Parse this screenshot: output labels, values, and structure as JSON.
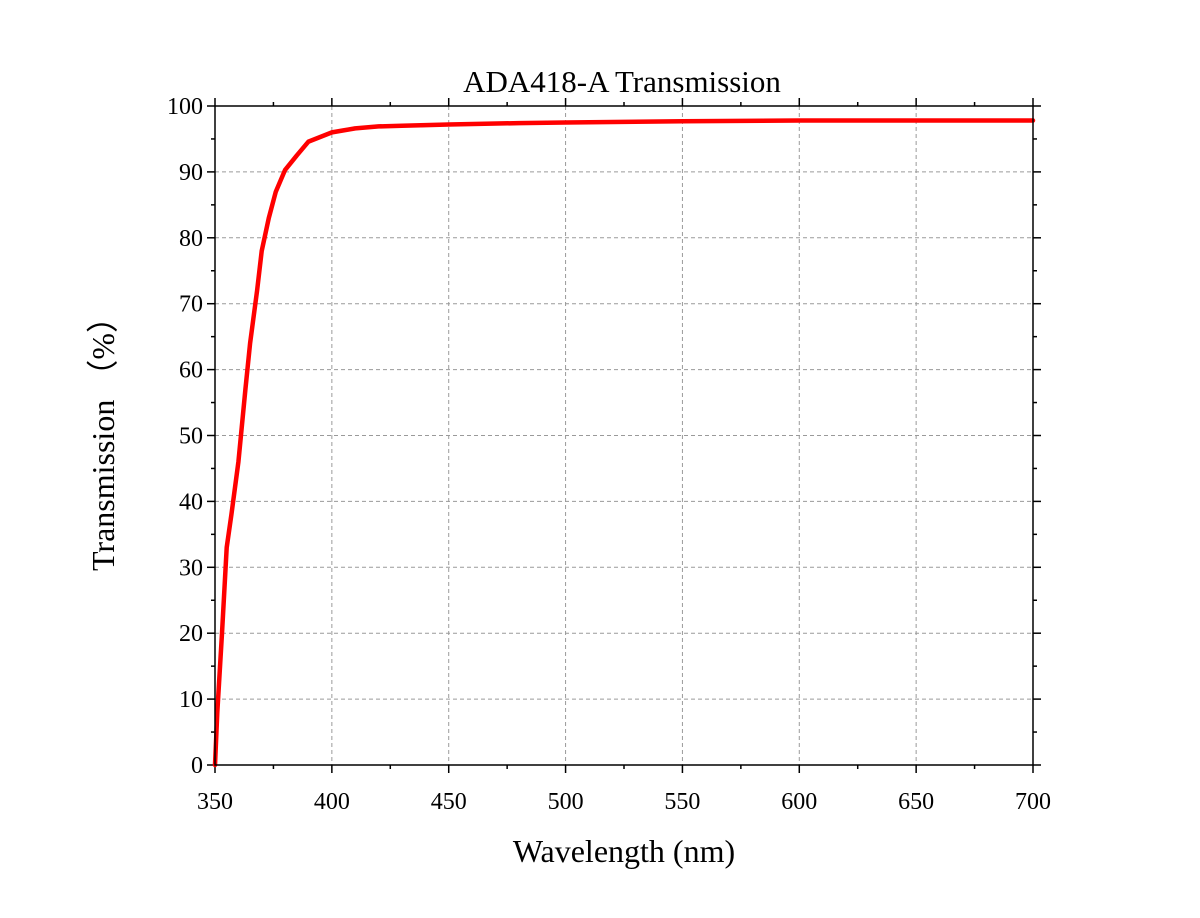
{
  "chart_data": {
    "type": "line",
    "title": "ADA418-A Transmission",
    "xlabel": "Wavelength (nm)",
    "ylabel": "Transmission （%）",
    "xlim": [
      350,
      700
    ],
    "ylim": [
      0,
      100
    ],
    "x_ticks": [
      350,
      400,
      450,
      500,
      550,
      600,
      650,
      700
    ],
    "y_ticks": [
      0,
      10,
      20,
      30,
      40,
      50,
      60,
      70,
      80,
      90,
      100
    ],
    "x_ticks_labels": [
      "350",
      "400",
      "450",
      "500",
      "550",
      "600",
      "650",
      "700"
    ],
    "y_ticks_labels": [
      "0",
      "10",
      "20",
      "30",
      "40",
      "50",
      "60",
      "70",
      "80",
      "90",
      "100"
    ],
    "grid": true,
    "legend": "none",
    "series": [
      {
        "color": "#ff0000",
        "x": [
          350,
          351,
          353,
          355,
          357,
          360,
          363,
          365,
          368,
          370,
          373,
          376,
          380,
          385,
          390,
          395,
          400,
          405,
          410,
          420,
          430,
          450,
          480,
          500,
          550,
          600,
          650,
          700
        ],
        "y": [
          0,
          8,
          20,
          33,
          38,
          46,
          57,
          64,
          72,
          78,
          83,
          87,
          90.3,
          92.5,
          94.6,
          95.3,
          96.0,
          96.3,
          96.6,
          96.9,
          97.0,
          97.2,
          97.4,
          97.5,
          97.7,
          97.8,
          97.8,
          97.8
        ]
      }
    ]
  }
}
